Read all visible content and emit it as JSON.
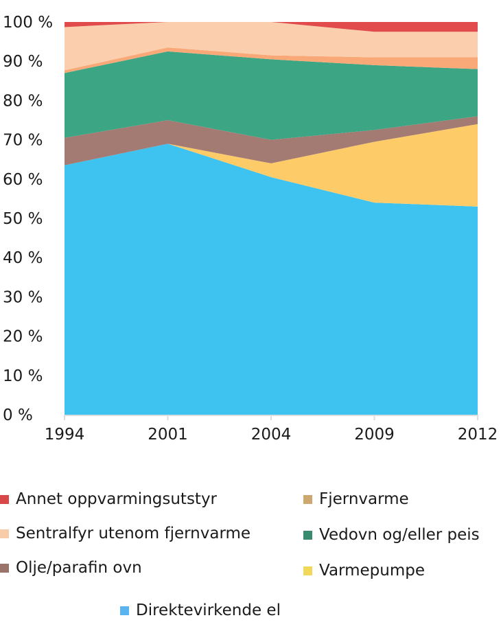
{
  "chart_data": {
    "type": "area",
    "stacked": true,
    "x": [
      "1994",
      "2001",
      "2004",
      "2009",
      "2012"
    ],
    "ylim": [
      0,
      100
    ],
    "yticks": [
      "0 %",
      "10 %",
      "20 %",
      "30 %",
      "40 %",
      "50 %",
      "60 %",
      "70 %",
      "80 %",
      "90 %",
      "100 %"
    ],
    "series": [
      {
        "name": "Direktevirkende el",
        "color": "#3ec3f0",
        "values": [
          63.5,
          69,
          60.5,
          54,
          53
        ]
      },
      {
        "name": "Varmepumpe",
        "color": "#fecb69",
        "values": [
          0,
          0,
          3.5,
          15.5,
          21
        ]
      },
      {
        "name": "Olje/parafin ovn",
        "color": "#a37b73",
        "values": [
          7,
          6,
          6,
          3,
          2
        ]
      },
      {
        "name": "Vedovn og/eller peis",
        "color": "#3ca584",
        "values": [
          16.5,
          17.5,
          20.5,
          16.5,
          12
        ]
      },
      {
        "name": "Fjernvarme",
        "color": "#f8a977",
        "values": [
          0.7,
          1,
          1,
          2,
          3
        ]
      },
      {
        "name": "Sentralfyr utenom fjernvarme",
        "color": "#fbcfad",
        "values": [
          11,
          6.5,
          8.5,
          6.5,
          6.5
        ]
      },
      {
        "name": "Annet oppvarmingsutstyr",
        "color": "#e24b4b",
        "values": [
          1.3,
          0,
          0,
          2.5,
          2.5
        ]
      }
    ],
    "legend": {
      "placement": "bottom",
      "entries": [
        {
          "label": "Annet oppvarmingsutstyr",
          "color": "#d94848"
        },
        {
          "label": "Fjernvarme",
          "color": "#cda770"
        },
        {
          "label": "Sentralfyr utenom fjernvarme",
          "color": "#f8cba9"
        },
        {
          "label": "Vedovn og/eller peis",
          "color": "#3a8a6e"
        },
        {
          "label": "Olje/parafin ovn",
          "color": "#9a736b"
        },
        {
          "label": "Varmepumpe",
          "color": "#f2d85a"
        },
        {
          "label": "Direktevirkende el",
          "color": "#5ab4ef"
        }
      ]
    }
  }
}
